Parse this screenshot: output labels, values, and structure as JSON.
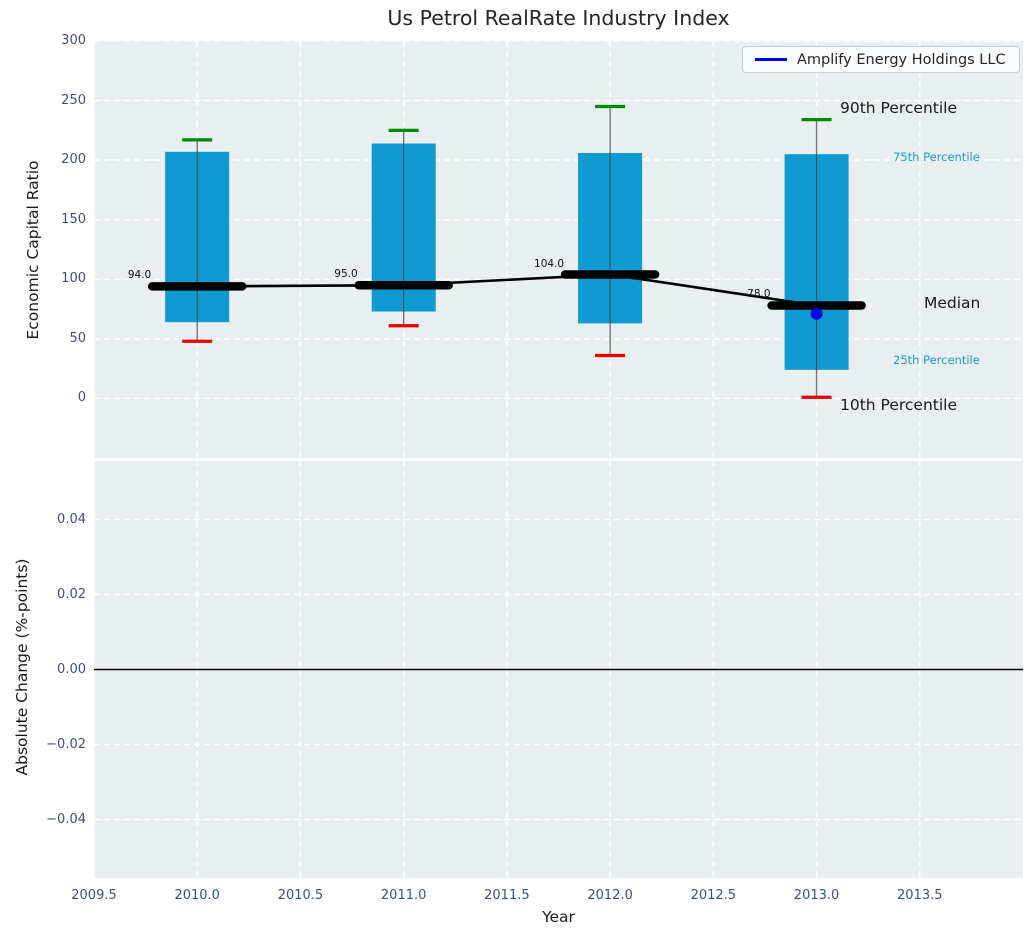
{
  "title": "Us Petrol RealRate Industry Index",
  "legend": {
    "label": "Amplify Energy Holdings LLC"
  },
  "annotations": {
    "p90": "90th Percentile",
    "p75": "75th Percentile",
    "median": "Median",
    "p25": "25th Percentile",
    "p10": "10th Percentile"
  },
  "colors": {
    "bar": "#0f9ad2",
    "p90_cap": "#008c00",
    "p10_cap": "#e60000",
    "median": "#000000",
    "company": "#0000e6",
    "axes_bg": "#e9eef0",
    "grid": "#ffffff",
    "tick_label": "#44516d",
    "whisker": "#777777"
  },
  "chart_data": [
    {
      "type": "box",
      "title": "Us Petrol RealRate Industry Index",
      "xlabel": "Year",
      "ylabel": "Economic Capital Ratio",
      "xlim": [
        2009.5,
        2014.0
      ],
      "ylim": [
        -50,
        300
      ],
      "grid": true,
      "legend_position": "upper right",
      "x_ticks": [
        {
          "v": 2009.5,
          "label": "2009.5"
        },
        {
          "v": 2010.0,
          "label": "2010.0"
        },
        {
          "v": 2010.5,
          "label": "2010.5"
        },
        {
          "v": 2011.0,
          "label": "2011.0"
        },
        {
          "v": 2011.5,
          "label": "2011.5"
        },
        {
          "v": 2012.0,
          "label": "2012.0"
        },
        {
          "v": 2012.5,
          "label": "2012.5"
        },
        {
          "v": 2013.0,
          "label": "2013.0"
        },
        {
          "v": 2013.5,
          "label": "2013.5"
        }
      ],
      "y_ticks": [
        {
          "v": 0,
          "label": "0"
        },
        {
          "v": 50,
          "label": "50"
        },
        {
          "v": 100,
          "label": "100"
        },
        {
          "v": 150,
          "label": "150"
        },
        {
          "v": 200,
          "label": "200"
        },
        {
          "v": 250,
          "label": "250"
        },
        {
          "v": 300,
          "label": "300"
        }
      ],
      "boxes": [
        {
          "year": 2010,
          "p10": 48,
          "p25": 64,
          "median": 94,
          "p75": 207,
          "p90": 217,
          "median_label": "94.0"
        },
        {
          "year": 2011,
          "p10": 61,
          "p25": 73,
          "median": 95,
          "p75": 214,
          "p90": 225,
          "median_label": "95.0"
        },
        {
          "year": 2012,
          "p10": 36,
          "p25": 63,
          "median": 104,
          "p75": 206,
          "p90": 245,
          "median_label": "104.0"
        },
        {
          "year": 2013,
          "p10": 1,
          "p25": 24,
          "median": 78,
          "p75": 205,
          "p90": 234,
          "median_label": "78.0"
        }
      ],
      "median_line": {
        "name": "Median",
        "x": [
          2010,
          2011,
          2012,
          2013
        ],
        "y": [
          94,
          95,
          104,
          78
        ]
      },
      "company_point": {
        "name": "Amplify Energy Holdings LLC",
        "x": 2013,
        "y": 71
      },
      "percentile_annotations": [
        "90th Percentile",
        "75th Percentile",
        "Median",
        "25th Percentile",
        "10th Percentile"
      ]
    },
    {
      "type": "line",
      "xlabel": "Year",
      "ylabel": "Absolute Change (%-points)",
      "xlim": [
        2009.5,
        2014.0
      ],
      "ylim": [
        -0.0556,
        0.0556
      ],
      "grid": true,
      "x_ticks": [
        {
          "v": 2009.5,
          "label": "2009.5"
        },
        {
          "v": 2010.0,
          "label": "2010.0"
        },
        {
          "v": 2010.5,
          "label": "2010.5"
        },
        {
          "v": 2011.0,
          "label": "2011.0"
        },
        {
          "v": 2011.5,
          "label": "2011.5"
        },
        {
          "v": 2012.0,
          "label": "2012.0"
        },
        {
          "v": 2012.5,
          "label": "2012.5"
        },
        {
          "v": 2013.0,
          "label": "2013.0"
        },
        {
          "v": 2013.5,
          "label": "2013.5"
        }
      ],
      "y_ticks": [
        {
          "v": 0.04,
          "label": "0.04"
        },
        {
          "v": 0.02,
          "label": "0.02"
        },
        {
          "v": 0.0,
          "label": "0.00"
        },
        {
          "v": -0.02,
          "label": "−0.02"
        },
        {
          "v": -0.04,
          "label": "−0.04"
        }
      ],
      "zero_line_y": 0.0,
      "series": []
    }
  ]
}
